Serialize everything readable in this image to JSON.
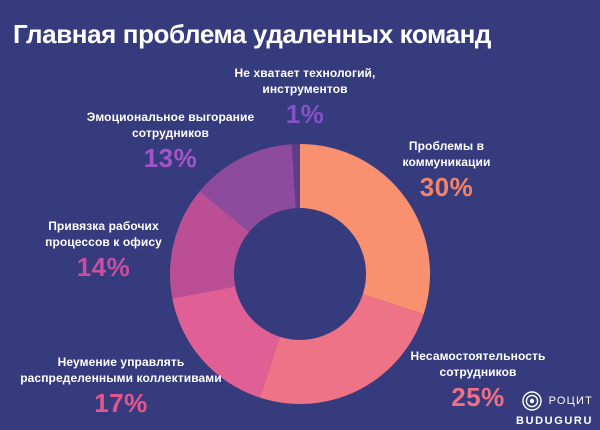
{
  "page": {
    "background_color": "#363b7d",
    "title": "Главная проблема удаленных команд"
  },
  "chart_data": {
    "type": "pie",
    "subtype": "donut",
    "title": "Главная проблема удаленных команд",
    "start_angle_deg": 0,
    "direction": "clockwise",
    "unit": "%",
    "categories": [
      "Проблемы в коммуникации",
      "Несамостоятельность сотрудников",
      "Неумение управлять распределенными коллективами",
      "Привязка рабочих процессов к офису",
      "Эмоциональное выгорание сотрудников",
      "Не хватает технологий, инструментов"
    ],
    "values": [
      30,
      25,
      17,
      14,
      13,
      1
    ],
    "slices": [
      {
        "label": "Проблемы в коммуникации",
        "label_lines": [
          "Проблемы в",
          "коммуникации"
        ],
        "value": 30,
        "pct_label": "30%",
        "color": "#F9906F",
        "pct_color": "#F2836B"
      },
      {
        "label": "Несамостоятельность сотрудников",
        "label_lines": [
          "Несамостоятельность",
          "сотрудников"
        ],
        "value": 25,
        "pct_label": "25%",
        "color": "#EF7386",
        "pct_color": "#EE7086"
      },
      {
        "label": "Неумение управлять распределенными коллективами",
        "label_lines": [
          "Неумение управлять",
          "распределенными коллективами"
        ],
        "value": 17,
        "pct_label": "17%",
        "color": "#E06095",
        "pct_color": "#E7558D"
      },
      {
        "label": "Привязка рабочих процессов к офису",
        "label_lines": [
          "Привязка рабочих",
          "процессов к офису"
        ],
        "value": 14,
        "pct_label": "14%",
        "color": "#BA4F96",
        "pct_color": "#C4509F"
      },
      {
        "label": "Эмоциональное выгорание сотрудников",
        "label_lines": [
          "Эмоциональное выгорание",
          "сотрудников"
        ],
        "value": 13,
        "pct_label": "13%",
        "color": "#8E4A9D",
        "pct_color": "#A355C6"
      },
      {
        "label": "Не хватает технологий, инструментов",
        "label_lines": [
          "Не хватает технологий,",
          "инструментов"
        ],
        "value": 1,
        "pct_label": "1%",
        "color": "#5E3D85",
        "pct_color": "#8451C9"
      }
    ],
    "legend_position": "callouts-around-donut",
    "grid": false
  },
  "logo": {
    "brand": "РОЦИТ",
    "product": "BUDUGURU"
  }
}
